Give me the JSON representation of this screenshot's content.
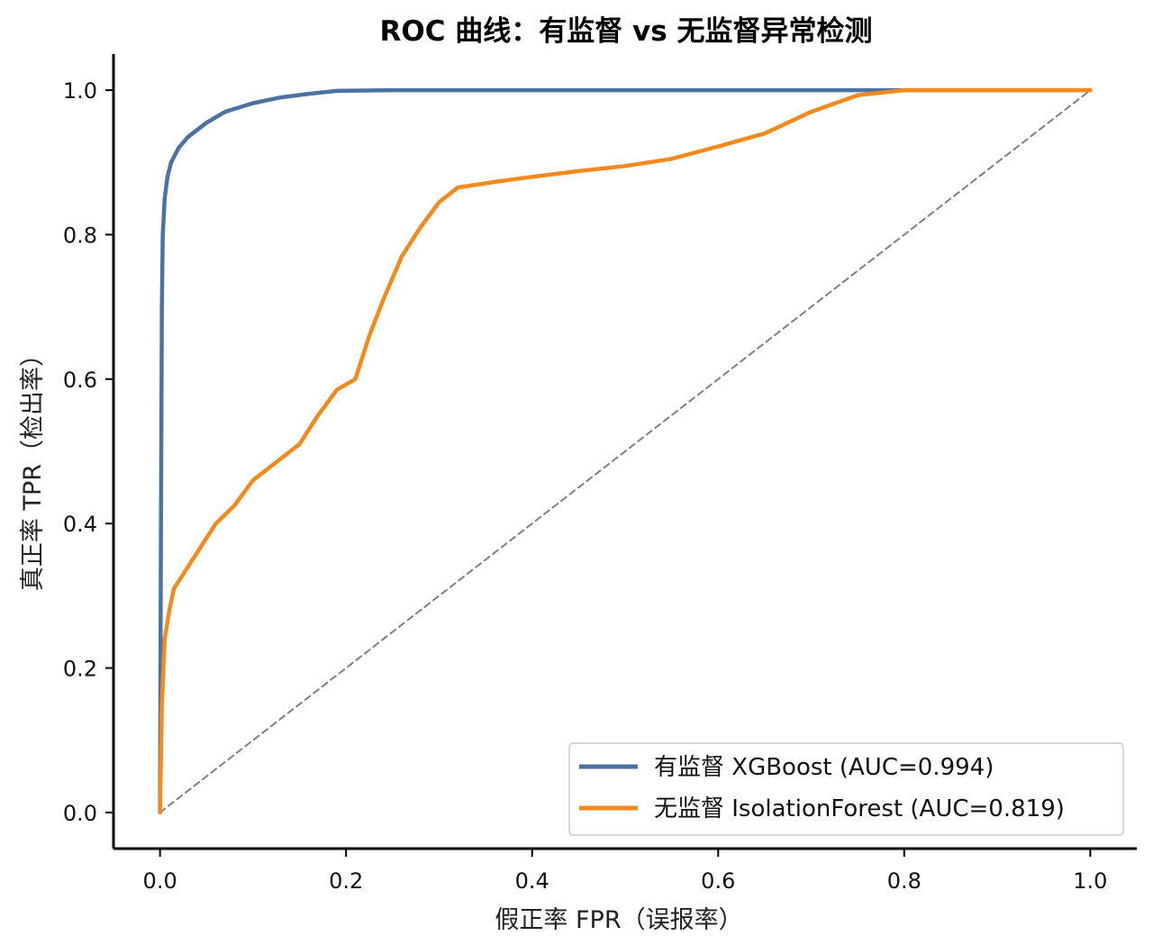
{
  "chart_data": {
    "type": "line",
    "title": "ROC 曲线：有监督 vs 无监督异常检测",
    "xlabel": "假正率 FPR（误报率）",
    "ylabel": "真正率 TPR（检出率）",
    "xlim": [
      -0.05,
      1.05
    ],
    "ylim": [
      -0.05,
      1.05
    ],
    "xticks": [
      0.0,
      0.2,
      0.4,
      0.6,
      0.8,
      1.0
    ],
    "yticks": [
      0.0,
      0.2,
      0.4,
      0.6,
      0.8,
      1.0
    ],
    "tick_labels_x": [
      "0.0",
      "0.2",
      "0.4",
      "0.6",
      "0.8",
      "1.0"
    ],
    "tick_labels_y": [
      "0.0",
      "0.2",
      "0.4",
      "0.6",
      "0.8",
      "1.0"
    ],
    "grid": false,
    "legend_position": "lower-right",
    "series": [
      {
        "name": "有监督 XGBoost (AUC=0.994)",
        "color": "#4c72a4",
        "x": [
          0.0,
          0.001,
          0.002,
          0.003,
          0.005,
          0.008,
          0.012,
          0.02,
          0.03,
          0.05,
          0.07,
          0.1,
          0.13,
          0.16,
          0.19,
          0.25,
          0.4,
          0.6,
          0.8,
          1.0
        ],
        "y": [
          0.0,
          0.4,
          0.7,
          0.8,
          0.85,
          0.88,
          0.9,
          0.92,
          0.935,
          0.955,
          0.97,
          0.982,
          0.99,
          0.995,
          0.999,
          1.0,
          1.0,
          1.0,
          1.0,
          1.0
        ]
      },
      {
        "name": "无监督 IsolationForest (AUC=0.819)",
        "color": "#f28a1e",
        "x": [
          0.0,
          0.002,
          0.005,
          0.01,
          0.015,
          0.025,
          0.04,
          0.06,
          0.08,
          0.1,
          0.12,
          0.15,
          0.17,
          0.19,
          0.21,
          0.225,
          0.24,
          0.26,
          0.28,
          0.3,
          0.32,
          0.36,
          0.4,
          0.45,
          0.5,
          0.55,
          0.6,
          0.65,
          0.7,
          0.75,
          0.8,
          0.9,
          1.0
        ],
        "y": [
          0.0,
          0.15,
          0.24,
          0.28,
          0.31,
          0.33,
          0.36,
          0.4,
          0.425,
          0.46,
          0.48,
          0.51,
          0.55,
          0.585,
          0.6,
          0.66,
          0.71,
          0.77,
          0.81,
          0.845,
          0.865,
          0.873,
          0.88,
          0.888,
          0.895,
          0.905,
          0.922,
          0.94,
          0.97,
          0.993,
          1.0,
          1.0,
          1.0
        ]
      },
      {
        "name": "",
        "color": "#808080",
        "dashed": true,
        "x": [
          0.0,
          1.0
        ],
        "y": [
          0.0,
          1.0
        ]
      }
    ]
  }
}
